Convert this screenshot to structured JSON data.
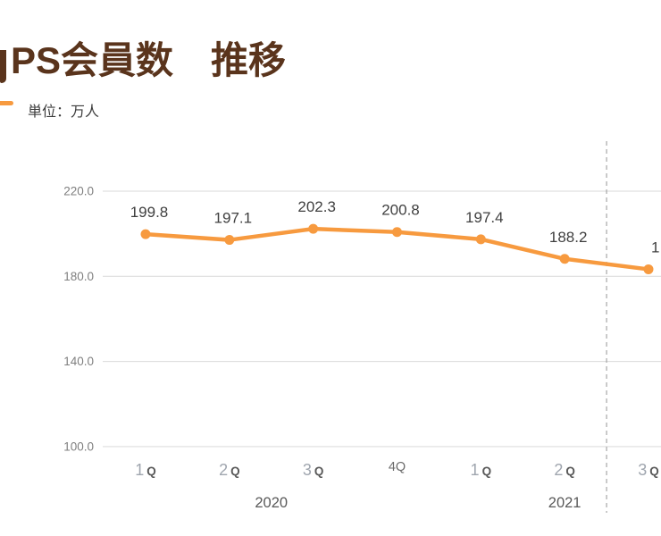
{
  "header": {
    "title": "PS会員数　推移",
    "unit_label": "単位：万人"
  },
  "colors": {
    "background": "#FFFFFF",
    "title_brown": "#5A341C",
    "series_orange": "#F79A3F",
    "unit_label_gray": "#3C3C3C",
    "data_label_gray": "#3F3F3F",
    "y_tick_gray": "#7F7F7F",
    "gridline_gray": "#D9D9D9",
    "divider_dash_gray": "#A6A6A6",
    "quarter_number_gray": "#9FA5AE",
    "quarter_letter_gray": "#595959",
    "quarter_alt_gray": "#6B6B6B",
    "year_label_gray": "#595959"
  },
  "chart_data": {
    "type": "line",
    "title": "PS会員数　推移",
    "unit": "単位：万人",
    "categories": [
      "1Q",
      "2Q",
      "3Q",
      "4Q",
      "1Q",
      "2Q",
      "3Q"
    ],
    "year_groups": [
      {
        "label": "2020",
        "start_index": 0,
        "end_index": 3
      },
      {
        "label": "2021",
        "start_index": 4,
        "end_index": 6
      }
    ],
    "values": [
      199.8,
      197.1,
      202.3,
      200.8,
      197.4,
      188.2,
      183.3
    ],
    "data_labels": [
      "199.8",
      "197.1",
      "202.3",
      "200.8",
      "197.4",
      "188.2",
      "1"
    ],
    "last_label_clipped_at_right_edge": true,
    "last_value_estimated_from_position": true,
    "ytick_labels": [
      "220.0",
      "180.0",
      "140.0",
      "100.0"
    ],
    "ylim": [
      100,
      225
    ],
    "grid": true,
    "legend_position": "top-left",
    "divider": {
      "style": "dashed-vertical",
      "between_category_indexes": [
        5,
        6
      ]
    }
  }
}
